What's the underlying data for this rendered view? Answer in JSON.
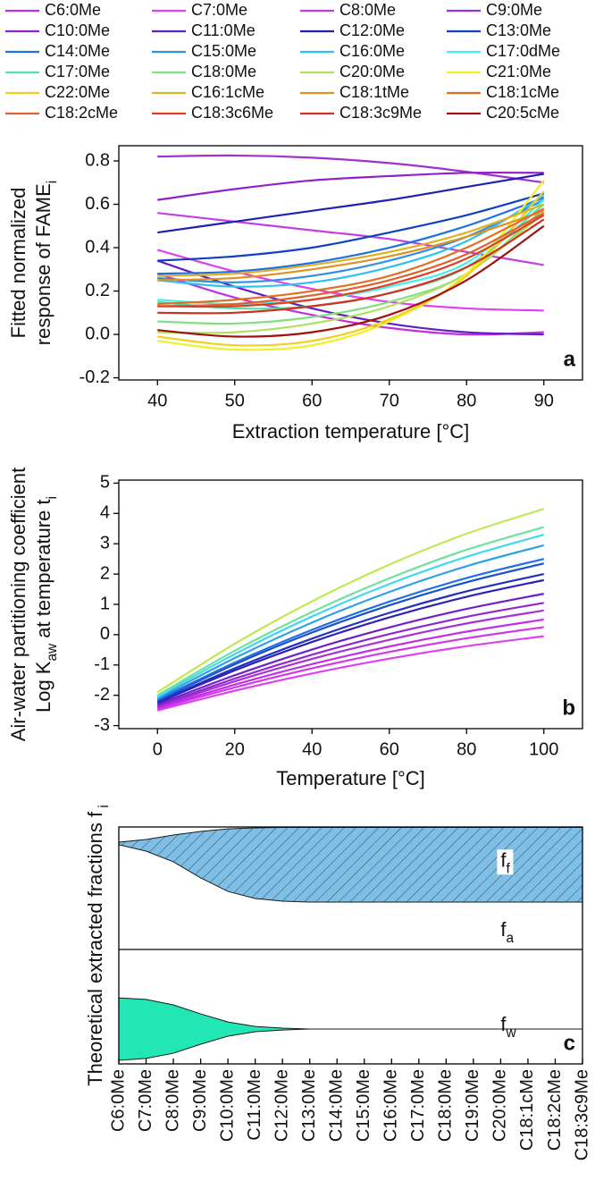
{
  "chart_data": [
    {
      "type": "line",
      "panel_label": "a",
      "x_label": "Extraction temperature [°C]",
      "y_label": [
        [
          {
            "text": "Fitted normalized"
          }
        ],
        [
          {
            "text": "response of FAME"
          },
          {
            "text": "i",
            "sub": true
          }
        ]
      ],
      "x": [
        40,
        50,
        60,
        70,
        80,
        90
      ],
      "xlim": [
        35,
        95
      ],
      "xticks": [
        40,
        50,
        60,
        70,
        80,
        90
      ],
      "ylim": [
        -0.21,
        0.87
      ],
      "yticks": [
        -0.2,
        {
          "value": 0,
          "label": "0.0"
        },
        0.2,
        0.4,
        0.6,
        0.8
      ],
      "legend": "top",
      "series": [
        {
          "name": "C6:0Me",
          "color": "#c030e0",
          "values": [
            0.28,
            0.17,
            0.09,
            0.03,
            0.0,
            0.01
          ]
        },
        {
          "name": "C7:0Me",
          "color": "#e040f0",
          "values": [
            0.39,
            0.29,
            0.21,
            0.15,
            0.12,
            0.11
          ]
        },
        {
          "name": "C8:0Me",
          "color": "#c040e0",
          "values": [
            0.56,
            0.52,
            0.48,
            0.44,
            0.38,
            0.32
          ]
        },
        {
          "name": "C9:0Me",
          "color": "#a030d0",
          "values": [
            0.82,
            0.825,
            0.815,
            0.79,
            0.75,
            0.7
          ]
        },
        {
          "name": "C10:0Me",
          "color": "#9020c8",
          "values": [
            0.62,
            0.67,
            0.71,
            0.73,
            0.745,
            0.745
          ]
        },
        {
          "name": "C11:0Me",
          "color": "#6020c0",
          "values": [
            0.34,
            0.22,
            0.12,
            0.05,
            0.01,
            0.0
          ]
        },
        {
          "name": "C12:0Me",
          "color": "#2020b0",
          "values": [
            0.47,
            0.52,
            0.57,
            0.62,
            0.68,
            0.74
          ]
        },
        {
          "name": "C13:0Me",
          "color": "#1040c0",
          "values": [
            0.34,
            0.36,
            0.4,
            0.47,
            0.55,
            0.65
          ]
        },
        {
          "name": "C14:0Me",
          "color": "#2070e0",
          "values": [
            0.28,
            0.29,
            0.33,
            0.4,
            0.5,
            0.63
          ]
        },
        {
          "name": "C15:0Me",
          "color": "#3090e0",
          "values": [
            0.26,
            0.24,
            0.27,
            0.34,
            0.45,
            0.62
          ]
        },
        {
          "name": "C16:0Me",
          "color": "#30c0f0",
          "values": [
            0.25,
            0.22,
            0.24,
            0.31,
            0.43,
            0.64
          ]
        },
        {
          "name": "C17:0dMe",
          "color": "#40f0f0",
          "values": [
            0.16,
            0.14,
            0.16,
            0.22,
            0.33,
            0.62
          ]
        },
        {
          "name": "C17:0Me",
          "color": "#50e0b0",
          "values": [
            0.15,
            0.12,
            0.13,
            0.19,
            0.31,
            0.6
          ]
        },
        {
          "name": "C18:0Me",
          "color": "#80e080",
          "values": [
            0.06,
            0.05,
            0.08,
            0.15,
            0.28,
            0.58
          ]
        },
        {
          "name": "C20:0Me",
          "color": "#b0e060",
          "values": [
            0.01,
            0.01,
            0.05,
            0.13,
            0.28,
            0.56
          ]
        },
        {
          "name": "C21:0Me",
          "color": "#f0f020",
          "values": [
            -0.03,
            -0.07,
            -0.05,
            0.06,
            0.28,
            0.71
          ]
        },
        {
          "name": "C22:0Me",
          "color": "#f0d020",
          "values": [
            -0.01,
            -0.05,
            -0.03,
            0.07,
            0.27,
            0.66
          ]
        },
        {
          "name": "C16:1cMe",
          "color": "#e0b020",
          "values": [
            0.27,
            0.28,
            0.32,
            0.38,
            0.47,
            0.6
          ]
        },
        {
          "name": "C18:1tMe",
          "color": "#e09020",
          "values": [
            0.25,
            0.26,
            0.3,
            0.36,
            0.45,
            0.57
          ]
        },
        {
          "name": "C18:1cMe",
          "color": "#e07020",
          "values": [
            0.14,
            0.16,
            0.2,
            0.27,
            0.4,
            0.58
          ]
        },
        {
          "name": "C18:2cMe",
          "color": "#e06030",
          "values": [
            0.13,
            0.14,
            0.18,
            0.25,
            0.37,
            0.56
          ]
        },
        {
          "name": "C18:3c6Me",
          "color": "#e04020",
          "values": [
            0.13,
            0.13,
            0.16,
            0.23,
            0.35,
            0.55
          ]
        },
        {
          "name": "C18:3c9Me",
          "color": "#d03020",
          "values": [
            0.1,
            0.1,
            0.13,
            0.19,
            0.31,
            0.53
          ]
        },
        {
          "name": "C20:5cMe",
          "color": "#a01010",
          "values": [
            0.02,
            -0.01,
            0.01,
            0.09,
            0.25,
            0.5
          ]
        }
      ]
    },
    {
      "type": "line",
      "panel_label": "b",
      "x_label": "Temperature [°C]",
      "y_label": [
        [
          {
            "text": "Air-water partitioning coefficient"
          }
        ],
        [
          {
            "text": "Log K"
          },
          {
            "text": "aw",
            "sub": true
          },
          {
            "text": " at temperature t"
          },
          {
            "text": "i",
            "sub": true
          }
        ]
      ],
      "x": [
        0,
        20,
        40,
        60,
        80,
        100
      ],
      "xlim": [
        -10,
        110
      ],
      "xticks": [
        0,
        20,
        40,
        60,
        80,
        100
      ],
      "ylim": [
        -3.1,
        5.1
      ],
      "yticks": [
        -3,
        -2,
        -1,
        0,
        1,
        2,
        3,
        4,
        5
      ],
      "series": [
        {
          "color": "#e040f0",
          "values": [
            -2.5,
            -1.85,
            -1.28,
            -0.79,
            -0.38,
            -0.05
          ]
        },
        {
          "color": "#d038e8",
          "values": [
            -2.45,
            -1.74,
            -1.11,
            -0.57,
            -0.12,
            0.25
          ]
        },
        {
          "color": "#c030e0",
          "values": [
            -2.42,
            -1.65,
            -0.97,
            -0.39,
            0.1,
            0.5
          ]
        },
        {
          "color": "#a830d8",
          "values": [
            -2.38,
            -1.54,
            -0.8,
            -0.17,
            0.37,
            0.8
          ]
        },
        {
          "color": "#9028d0",
          "values": [
            -2.35,
            -1.45,
            -0.66,
            0.02,
            0.59,
            1.05
          ]
        },
        {
          "color": "#7020c8",
          "values": [
            -2.3,
            -1.34,
            -0.49,
            0.24,
            0.85,
            1.35
          ]
        },
        {
          "color": "#3020b8",
          "values": [
            -2.25,
            -1.18,
            -0.24,
            0.57,
            1.25,
            1.8
          ]
        },
        {
          "color": "#2030c0",
          "values": [
            -2.22,
            -1.11,
            -0.13,
            0.72,
            1.43,
            2.0
          ]
        },
        {
          "color": "#1850d0",
          "values": [
            -2.18,
            -0.98,
            0.07,
            0.97,
            1.73,
            2.35
          ]
        },
        {
          "color": "#2070e0",
          "values": [
            -2.15,
            -0.92,
            0.16,
            1.09,
            1.87,
            2.5
          ]
        },
        {
          "color": "#30a0e8",
          "values": [
            -2.1,
            -0.77,
            0.4,
            1.41,
            2.26,
            2.95
          ]
        },
        {
          "color": "#40d8f0",
          "values": [
            -2.05,
            -0.64,
            0.6,
            1.67,
            2.57,
            3.3
          ]
        },
        {
          "color": "#70e0a0",
          "values": [
            -2.0,
            -0.53,
            0.75,
            1.86,
            2.8,
            3.55
          ]
        },
        {
          "color": "#c0e850",
          "values": [
            -1.9,
            -0.3,
            1.1,
            2.31,
            3.33,
            4.15
          ]
        }
      ]
    },
    {
      "type": "stream",
      "panel_label": "c",
      "y_label": [
        [
          {
            "text": "Theoretical extracted fractions f"
          },
          {
            "text": " i",
            "sub": true
          }
        ]
      ],
      "categories": [
        "C6:0Me",
        "C7:0Me",
        "C8:0Me",
        "C9:0Me",
        "C10:0Me",
        "C11:0Me",
        "C12:0Me",
        "C13:0Me",
        "C14:0Me",
        "C15:0Me",
        "C16:0Me",
        "C17:0Me",
        "C18:0Me",
        "C19:0Me",
        "C20:0Me",
        "C18:1cMe",
        "C18:2cMe",
        "C18:3c9Me"
      ],
      "ylim": [
        0,
        1
      ],
      "bands": [
        {
          "label": [
            {
              "text": "f"
            },
            {
              "text": "f",
              "sub": true
            }
          ],
          "color": "#7fbfe6",
          "hatch": true,
          "upper": [
            0.936,
            0.947,
            0.966,
            0.981,
            0.992,
            0.996,
            0.998,
            0.998,
            0.998,
            0.998,
            0.998,
            0.998,
            0.998,
            0.998,
            0.998,
            0.998,
            0.998,
            0.998
          ],
          "lower": [
            0.925,
            0.898,
            0.853,
            0.785,
            0.728,
            0.698,
            0.687,
            0.683,
            0.683,
            0.683,
            0.683,
            0.683,
            0.683,
            0.683,
            0.683,
            0.683,
            0.683,
            0.683
          ]
        },
        {
          "label": [
            {
              "text": "f"
            },
            {
              "text": "w",
              "sub": true
            }
          ],
          "color": "#22e6b4",
          "hatch": false,
          "upper": [
            0.279,
            0.272,
            0.249,
            0.211,
            0.177,
            0.158,
            0.151,
            0.147,
            0.147,
            0.147,
            0.147,
            0.147,
            0.147,
            0.147,
            0.147,
            0.147,
            0.147,
            0.147
          ],
          "lower": [
            0.015,
            0.023,
            0.045,
            0.083,
            0.117,
            0.136,
            0.143,
            0.147,
            0.147,
            0.147,
            0.147,
            0.147,
            0.147,
            0.147,
            0.147,
            0.147,
            0.147,
            0.147
          ]
        }
      ],
      "annotations": [
        [
          {
            "text": "f"
          },
          {
            "text": "a",
            "sub": true
          }
        ]
      ]
    }
  ]
}
